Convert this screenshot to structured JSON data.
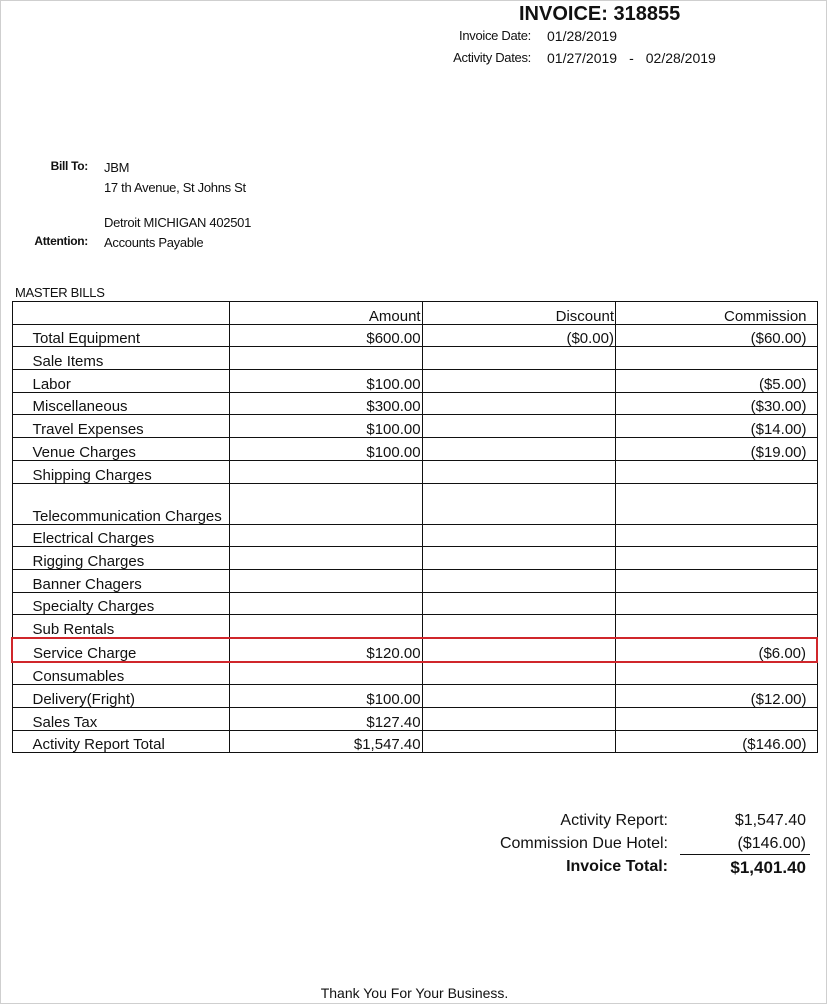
{
  "header": {
    "invoice_title": "INVOICE:  318855",
    "invoice_date_label": "Invoice Date:",
    "invoice_date": "01/28/2019",
    "activity_dates_label": "Activity Dates:",
    "activity_start": "01/27/2019",
    "activity_sep": "-",
    "activity_end": "02/28/2019"
  },
  "bill_to": {
    "label": "Bill To:",
    "name": "JBM",
    "address1": "17 th Avenue, St Johns St",
    "address2": "Detroit MICHIGAN 402501",
    "attention_label": "Attention:",
    "attention": "Accounts Payable"
  },
  "section_title": "MASTER BILLS",
  "table": {
    "columns": [
      "",
      "Amount",
      "Discount",
      "Commission"
    ],
    "rows": [
      [
        "Total Equipment",
        "$600.00",
        "($0.00)",
        "($60.00)"
      ],
      [
        "Sale Items",
        "",
        "",
        ""
      ],
      [
        "Labor",
        "$100.00",
        "",
        "($5.00)"
      ],
      [
        "Miscellaneous",
        "$300.00",
        "",
        "($30.00)"
      ],
      [
        "Travel Expenses",
        "$100.00",
        "",
        "($14.00)"
      ],
      [
        "Venue Charges",
        "$100.00",
        "",
        "($19.00)"
      ],
      [
        "Shipping Charges",
        "",
        "",
        ""
      ],
      [
        "Telecommunication Charges",
        "",
        "",
        ""
      ],
      [
        "Electrical Charges",
        "",
        "",
        ""
      ],
      [
        "Rigging Charges",
        "",
        "",
        ""
      ],
      [
        "Banner Chagers",
        "",
        "",
        ""
      ],
      [
        "Specialty Charges",
        "",
        "",
        ""
      ],
      [
        "Sub Rentals",
        "",
        "",
        ""
      ],
      [
        "Service Charge",
        "$120.00",
        "",
        "($6.00)"
      ],
      [
        "Consumables",
        "",
        "",
        ""
      ],
      [
        "Delivery(Fright)",
        "$100.00",
        "",
        "($12.00)"
      ],
      [
        "Sales Tax",
        "$127.40",
        "",
        ""
      ],
      [
        "Activity Report Total",
        "$1,547.40",
        "",
        "($146.00)"
      ]
    ],
    "highlighted_row": "Service Charge",
    "highlight_color": "#d0262b"
  },
  "summary": {
    "activity_report_label": "Activity Report:",
    "activity_report": "$1,547.40",
    "commission_label": "Commission Due Hotel:",
    "commission": "($146.00)",
    "total_label": "Invoice Total:",
    "total": "$1,401.40"
  },
  "footer": "Thank You For Your Business."
}
